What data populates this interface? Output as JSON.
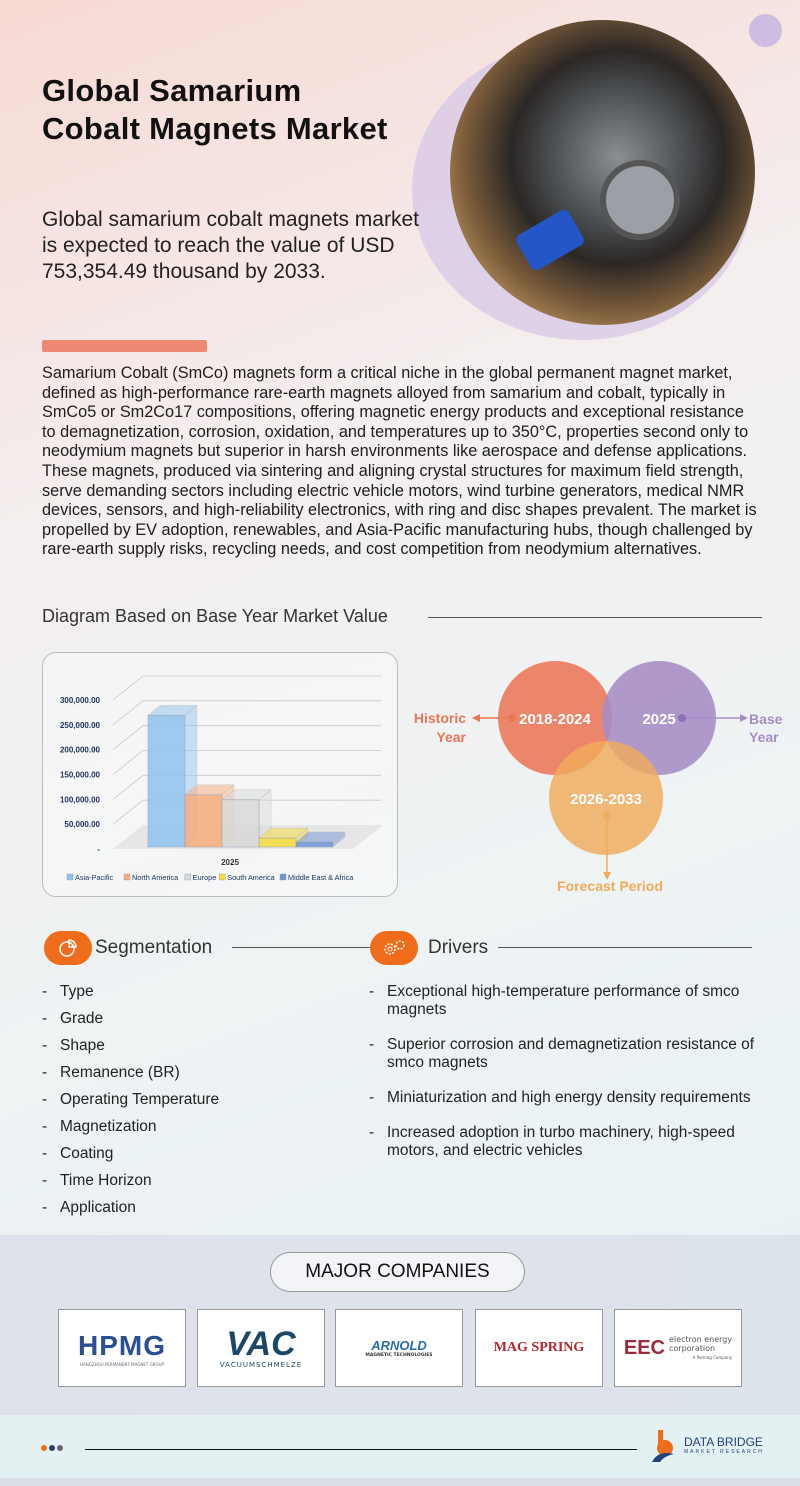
{
  "header": {
    "title_line1": "Global Samarium",
    "title_line2": "Cobalt Magnets Market",
    "subtitle": "Global samarium cobalt magnets market is expected to reach the value of USD 753,354.49 thousand by 2033."
  },
  "description": "Samarium Cobalt (SmCo) magnets form a critical niche in the global permanent magnet market, defined as high-performance rare-earth magnets alloyed from samarium and cobalt, typically in SmCo5 or Sm2Co17 compositions, offering magnetic energy products and exceptional resistance to demagnetization, corrosion, oxidation, and temperatures up to 350°C, properties second only to neodymium magnets but superior in harsh environments like aerospace and defense applications. These magnets, produced via sintering and aligning crystal structures for maximum field strength, serve demanding sectors including electric vehicle motors, wind turbine generators, medical NMR devices, sensors, and high-reliability electronics, with ring and disc shapes prevalent. The market is propelled by EV adoption, renewables, and Asia-Pacific manufacturing hubs, though challenged by rare-earth supply risks, recycling needs, and cost competition from neodymium alternatives.",
  "diagram_heading": "Diagram Based on Base Year Market Value",
  "chart_data": {
    "type": "bar",
    "title": "",
    "xlabel": "",
    "ylabel": "",
    "categories": [
      "2025"
    ],
    "series": [
      {
        "name": "Asia-Pacific",
        "values": [
          265000
        ],
        "color": "#8fc3ee"
      },
      {
        "name": "North America",
        "values": [
          105000
        ],
        "color": "#f7ad7c"
      },
      {
        "name": "Europe",
        "values": [
          95000
        ],
        "color": "#d9d9d9"
      },
      {
        "name": "South America",
        "values": [
          18000
        ],
        "color": "#f7dd3c"
      },
      {
        "name": "Middle East & Africa",
        "values": [
          10000
        ],
        "color": "#6f95d8"
      }
    ],
    "yticks": [
      "-",
      "50,000.00",
      "100,000.00",
      "150,000.00",
      "200,000.00",
      "250,000.00",
      "300,000.00"
    ],
    "ylim": [
      0,
      300000
    ],
    "grid": true,
    "legend": "bottom"
  },
  "timeline": {
    "historic_years": "2018-2024",
    "historic_label_1": "Historic",
    "historic_label_2": "Year",
    "base_year": "2025",
    "base_label_1": "Base",
    "base_label_2": "Year",
    "forecast_years": "2026-2033",
    "forecast_label": "Forecast Period",
    "colors": {
      "historic": "#ea7658",
      "base": "#a68cc4",
      "forecast": "#f0ab5c"
    }
  },
  "segmentation": {
    "title": "Segmentation",
    "items": [
      "Type",
      "Grade",
      "Shape",
      "Remanence (BR)",
      "Operating Temperature",
      "Magnetization",
      "Coating",
      "Time Horizon",
      "Application"
    ]
  },
  "drivers": {
    "title": "Drivers",
    "items": [
      "Exceptional high-temperature performance of smco magnets",
      "Superior corrosion and demagnetization resistance of smco magnets",
      "Miniaturization and high energy density requirements",
      "Increased adoption in turbo machinery, high-speed motors, and electric vehicles"
    ]
  },
  "companies": {
    "title": "MAJOR COMPANIES",
    "hpmg": {
      "name": "HPMG",
      "sub": "HANGZHOU PERMANENT MAGNET GROUP"
    },
    "vac": {
      "name": "VAC",
      "sub": "VACUUMSCHMELZE"
    },
    "arnold": {
      "name": "ARNOLD",
      "sub": "MAGNETIC TECHNOLOGIES"
    },
    "magspring": {
      "name": "MAG SPRING"
    },
    "eec": {
      "name": "EEC",
      "sub1": "electron energy",
      "sub2": "corporation",
      "sub3": "A Permag Company"
    }
  },
  "footer": {
    "brand": "DATA BRIDGE",
    "brand_sub": "MARKET RESEARCH"
  },
  "accent": "#ef6c1a"
}
